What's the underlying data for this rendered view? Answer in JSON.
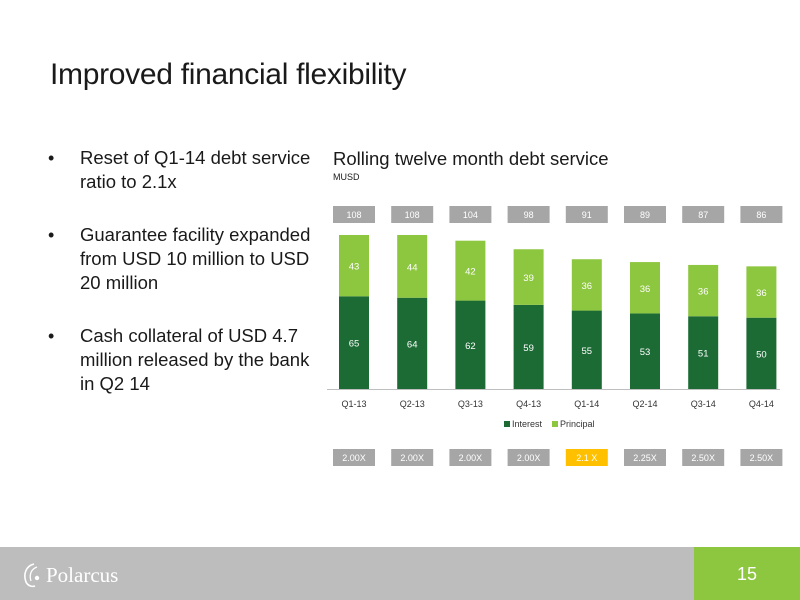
{
  "slide": {
    "title": "Improved financial flexibility",
    "page_number": "15"
  },
  "bullets": [
    "Reset of Q1-14 debt service ratio to 2.1x",
    "Guarantee facility expanded from USD 10 million to USD 20 million",
    "Cash collateral of USD 4.7 million released by the bank in Q2 14"
  ],
  "footer": {
    "logo_text": "Polarcus"
  },
  "colors": {
    "interest": "#1c6b35",
    "principal": "#8dc63f",
    "badge_gray": "#a6a6a6",
    "badge_highlight": "#ffc000",
    "footer_gray": "#bdbdbd"
  },
  "chart_data": {
    "type": "bar",
    "stacked": true,
    "title": "Rolling twelve month debt service",
    "subtitle": "MUSD",
    "categories": [
      "Q1-13",
      "Q2-13",
      "Q3-13",
      "Q4-13",
      "Q1-14",
      "Q2-14",
      "Q3-14",
      "Q4-14"
    ],
    "series": [
      {
        "name": "Interest",
        "values": [
          65,
          64,
          62,
          59,
          55,
          53,
          51,
          50
        ]
      },
      {
        "name": "Principal",
        "values": [
          43,
          44,
          42,
          39,
          36,
          36,
          36,
          36
        ]
      }
    ],
    "totals": [
      "108",
      "108",
      "104",
      "98",
      "91",
      "89",
      "87",
      "86"
    ],
    "ratios": [
      "2.00X",
      "2.00X",
      "2.00X",
      "2.00X",
      "2.1 X",
      "2.25X",
      "2.50X",
      "2.50X"
    ],
    "highlight_index": 4,
    "ylim": [
      0,
      110
    ],
    "grid": false,
    "legend_position": "bottom"
  }
}
